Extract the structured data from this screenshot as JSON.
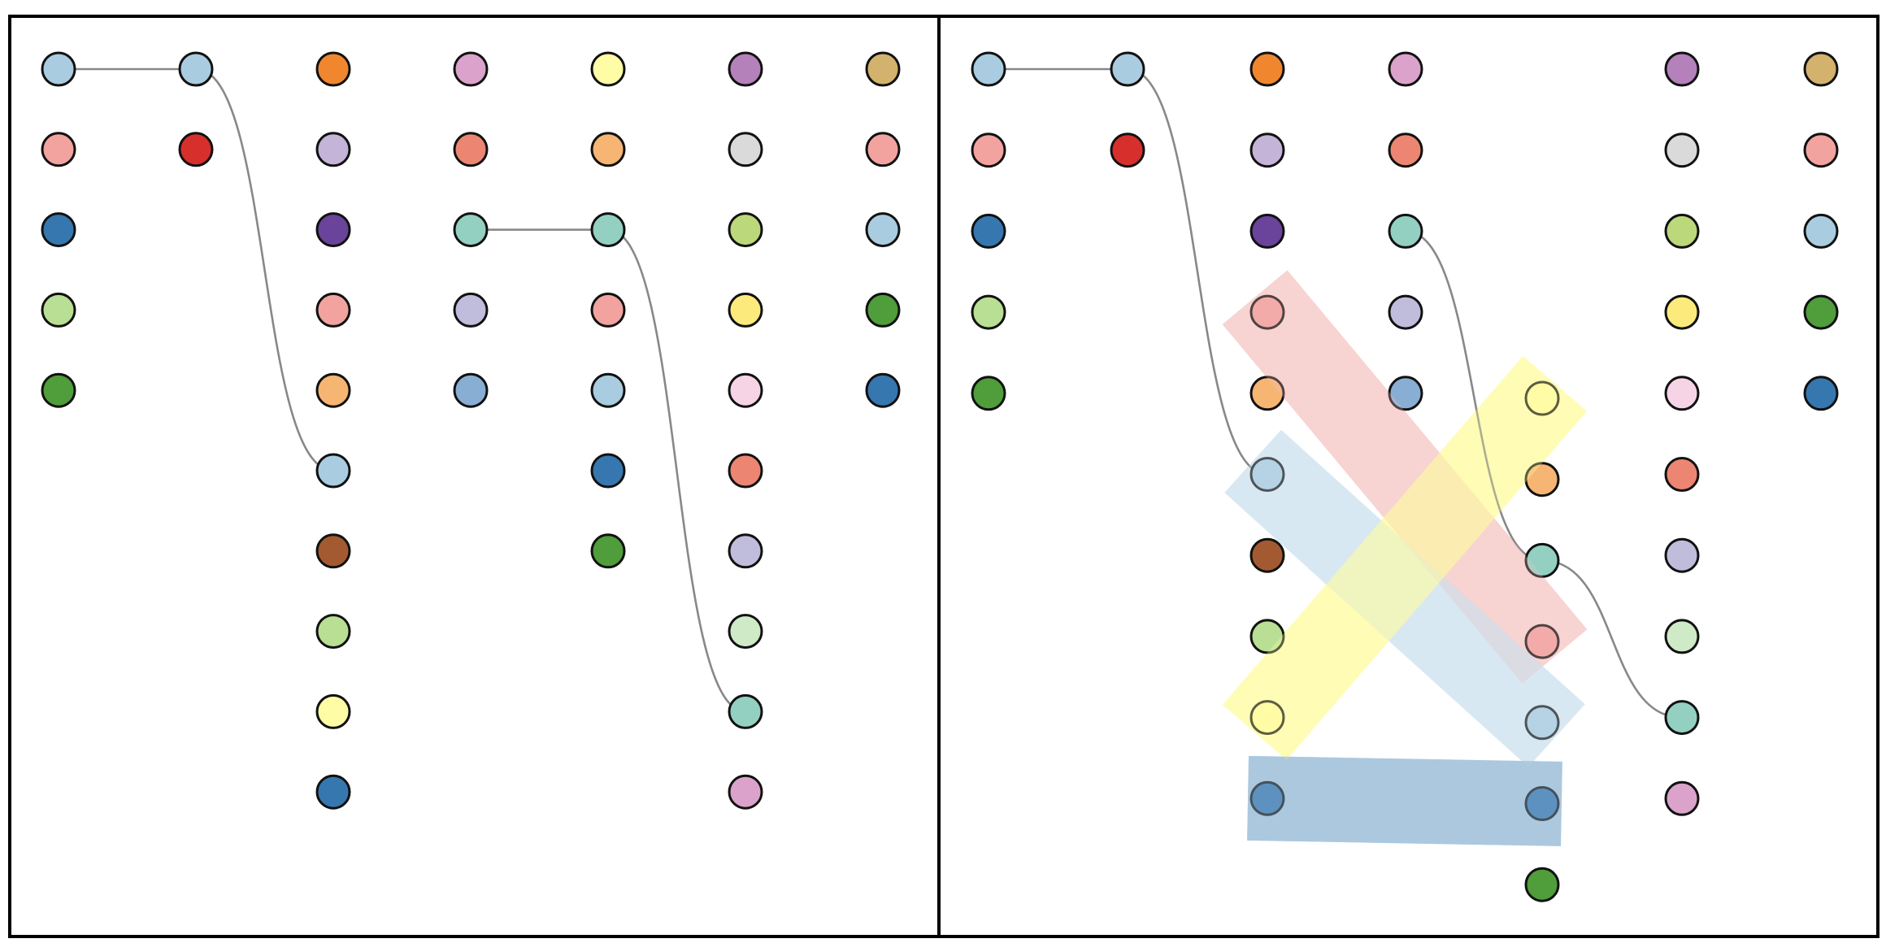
{
  "colors": {
    "lightblue": "#a9cce0",
    "pink": "#f2a3a0",
    "blue": "#3677b0",
    "lightgreen": "#b8df93",
    "green": "#4f9d3b",
    "red": "#d62f2c",
    "orange": "#f0872f",
    "lavender": "#c4b4d8",
    "purple": "#6a439b",
    "peach": "#f6b573",
    "brown": "#a45a30",
    "lightyellow": "#fffca6",
    "mauve": "#dba3cc",
    "salmon": "#ec8672",
    "teal": "#94d0c2",
    "periwinkle": "#bfbcdc",
    "steelblue": "#88aed4",
    "yellow": "#fcea7c",
    "violet": "#b481bb",
    "lightgray": "#dadada",
    "lime": "#bbd97a",
    "lightpink": "#f7d3e6",
    "palegreen": "#cfeac6",
    "khaki": "#d3b26e"
  },
  "band_colors": {
    "pink_band": "#f4c3c1",
    "lightblue_band": "#cfe2ee",
    "yellow_band": "#fffca6",
    "blue_band": "#a1c1db"
  },
  "panels": [
    {
      "name": "left-panel",
      "columns": [
        [
          "lightblue",
          "pink",
          "blue",
          "lightgreen",
          "green"
        ],
        [
          "lightblue",
          "red"
        ],
        [
          "orange",
          "lavender",
          "purple",
          "pink",
          "peach",
          "lightblue",
          "brown",
          "lightgreen",
          "lightyellow",
          "blue"
        ],
        [
          "mauve",
          "salmon",
          "teal",
          "periwinkle",
          "steelblue"
        ],
        [
          "lightyellow",
          "peach",
          "teal",
          "pink",
          "lightblue",
          "blue",
          "green"
        ],
        [
          "violet",
          "lightgray",
          "lime",
          "yellow",
          "lightpink",
          "salmon",
          "periwinkle",
          "palegreen",
          "teal",
          "mauve"
        ],
        [
          "khaki",
          "pink",
          "lightblue",
          "green",
          "blue"
        ]
      ],
      "links": [
        {
          "from": [
            0,
            0
          ],
          "to": [
            1,
            0
          ]
        },
        {
          "from": [
            1,
            0
          ],
          "to": [
            2,
            5
          ]
        },
        {
          "from": [
            3,
            2
          ],
          "to": [
            4,
            2
          ]
        },
        {
          "from": [
            4,
            2
          ],
          "to": [
            5,
            8
          ]
        }
      ],
      "bands": []
    },
    {
      "name": "right-panel",
      "columns": [
        [
          "lightblue",
          "pink",
          "blue",
          "lightgreen",
          "green"
        ],
        [
          "lightblue",
          "red"
        ],
        [
          "orange",
          "lavender",
          "purple",
          "pink",
          "peach",
          "lightblue",
          "brown",
          "lightgreen",
          "lightyellow",
          "blue"
        ],
        [
          "mauve",
          "salmon",
          "teal",
          "periwinkle",
          "steelblue"
        ],
        [
          "lightyellow",
          "peach",
          "teal",
          "pink",
          "lightblue",
          "blue",
          "green"
        ],
        [
          "violet",
          "lightgray",
          "lime",
          "yellow",
          "lightpink",
          "salmon",
          "periwinkle",
          "palegreen",
          "teal",
          "mauve"
        ],
        [
          "khaki",
          "pink",
          "lightblue",
          "green",
          "blue"
        ]
      ],
      "links": [
        {
          "from": [
            0,
            0
          ],
          "to": [
            1,
            0
          ]
        },
        {
          "from": [
            1,
            0
          ],
          "to": [
            2,
            5
          ]
        },
        {
          "from": [
            3,
            2
          ],
          "to": [
            4,
            2
          ]
        },
        {
          "from": [
            4,
            2
          ],
          "to": [
            5,
            8
          ]
        }
      ],
      "bands": [
        {
          "from": [
            2,
            3
          ],
          "to": [
            4,
            3
          ],
          "color": "pink_band",
          "opacity": 0.62
        },
        {
          "from": [
            2,
            5
          ],
          "to": [
            4,
            4
          ],
          "color": "lightblue_band",
          "opacity": 0.72
        },
        {
          "from": [
            2,
            8
          ],
          "to": [
            4,
            0
          ],
          "color": "yellow_band",
          "opacity": 0.72
        },
        {
          "from": [
            2,
            9
          ],
          "to": [
            4,
            5
          ],
          "color": "blue_band",
          "opacity": 0.82
        }
      ]
    }
  ]
}
